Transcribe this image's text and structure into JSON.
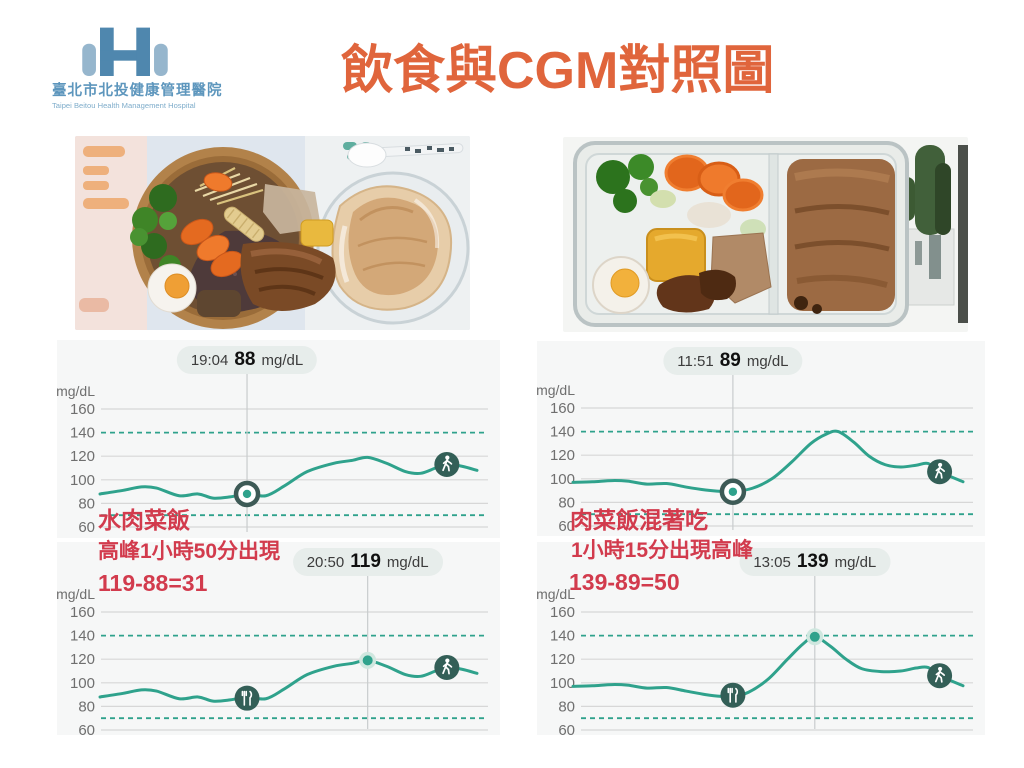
{
  "header": {
    "logo": {
      "line1": "臺北市北投健康管理醫院",
      "line2": "Taipei Beitou Health Management Hospital"
    },
    "title": "飲食與CGM對照圖"
  },
  "annotations": {
    "left": [
      "水肉菜飯",
      "高峰1小時50分出現",
      "119-88=31"
    ],
    "right": [
      "肉菜飯混著吃",
      "1小時15分出現高峰",
      "139-89=50"
    ]
  },
  "colors": {
    "line": "#2fa28c",
    "target": "#2fa28c",
    "grid": "#d7d7d7",
    "icon_bg": "#335f57",
    "ring": "#3d5a56",
    "halo": "#cfe7df",
    "tooltip_bg": "#e7edeb",
    "red": "#d23b4d",
    "title": "#e0653c"
  },
  "chart_data": [
    {
      "type": "line",
      "position": "top-left",
      "ylabel": "mg/dL",
      "yticks": [
        160,
        140,
        120,
        100,
        80,
        60
      ],
      "ylim": [
        55,
        170
      ],
      "target_lines": [
        140,
        70
      ],
      "grid": true,
      "tooltip": {
        "time": "19:04",
        "value": "88",
        "unit": "mg/dL"
      },
      "selected": {
        "t": 0.39,
        "v": 88,
        "style": "ring"
      },
      "icons": [
        {
          "glyph": "walk",
          "t": 0.92,
          "v": 113
        }
      ],
      "points": [
        [
          0,
          88
        ],
        [
          0.06,
          91
        ],
        [
          0.11,
          94
        ],
        [
          0.15,
          93
        ],
        [
          0.21,
          86.5
        ],
        [
          0.26,
          88
        ],
        [
          0.3,
          84.5
        ],
        [
          0.345,
          85.5
        ],
        [
          0.39,
          88
        ],
        [
          0.44,
          86.5
        ],
        [
          0.49,
          95
        ],
        [
          0.55,
          107
        ],
        [
          0.62,
          114
        ],
        [
          0.67,
          116.5
        ],
        [
          0.71,
          119
        ],
        [
          0.76,
          114
        ],
        [
          0.81,
          107
        ],
        [
          0.85,
          105.5
        ],
        [
          0.89,
          110
        ],
        [
          0.92,
          113
        ],
        [
          0.96,
          111.5
        ],
        [
          1,
          108
        ]
      ]
    },
    {
      "type": "line",
      "position": "top-right",
      "ylabel": "mg/dL",
      "yticks": [
        160,
        140,
        120,
        100,
        80,
        60
      ],
      "ylim": [
        55,
        170
      ],
      "target_lines": [
        140,
        70
      ],
      "grid": true,
      "tooltip": {
        "time": "11:51",
        "value": "89",
        "unit": "mg/dL"
      },
      "selected": {
        "t": 0.41,
        "v": 89,
        "style": "ring"
      },
      "icons": [
        {
          "glyph": "walk",
          "t": 0.94,
          "v": 106
        }
      ],
      "points": [
        [
          0,
          97
        ],
        [
          0.05,
          97.5
        ],
        [
          0.1,
          98.5
        ],
        [
          0.14,
          98
        ],
        [
          0.19,
          95.5
        ],
        [
          0.24,
          96
        ],
        [
          0.29,
          93
        ],
        [
          0.34,
          90.5
        ],
        [
          0.38,
          89.3
        ],
        [
          0.41,
          89
        ],
        [
          0.46,
          92
        ],
        [
          0.51,
          100
        ],
        [
          0.56,
          114
        ],
        [
          0.61,
          130
        ],
        [
          0.65,
          138
        ],
        [
          0.68,
          140
        ],
        [
          0.72,
          131
        ],
        [
          0.76,
          119
        ],
        [
          0.8,
          112
        ],
        [
          0.84,
          110
        ],
        [
          0.88,
          111.5
        ],
        [
          0.91,
          113
        ],
        [
          0.94,
          106
        ],
        [
          1,
          97.5
        ]
      ]
    },
    {
      "type": "line",
      "position": "bottom-left",
      "ylabel": "mg/dL",
      "yticks": [
        160,
        140,
        120,
        100,
        80,
        60
      ],
      "ylim": [
        55,
        170
      ],
      "target_lines": [
        140,
        70
      ],
      "grid": true,
      "tooltip": {
        "time": "20:50",
        "value": "119",
        "unit": "mg/dL"
      },
      "selected": {
        "t": 0.71,
        "v": 119,
        "style": "dot"
      },
      "icons": [
        {
          "glyph": "meal",
          "t": 0.39,
          "v": 87
        },
        {
          "glyph": "walk",
          "t": 0.92,
          "v": 113
        }
      ],
      "points": [
        [
          0,
          88
        ],
        [
          0.06,
          91
        ],
        [
          0.11,
          94
        ],
        [
          0.15,
          93
        ],
        [
          0.21,
          86.5
        ],
        [
          0.26,
          88
        ],
        [
          0.3,
          84.5
        ],
        [
          0.345,
          85.5
        ],
        [
          0.39,
          88
        ],
        [
          0.44,
          86.5
        ],
        [
          0.49,
          95
        ],
        [
          0.55,
          107
        ],
        [
          0.62,
          114
        ],
        [
          0.67,
          116.5
        ],
        [
          0.71,
          119
        ],
        [
          0.76,
          114
        ],
        [
          0.81,
          107
        ],
        [
          0.85,
          105.5
        ],
        [
          0.89,
          110
        ],
        [
          0.92,
          113
        ],
        [
          0.96,
          111.5
        ],
        [
          1,
          108
        ]
      ]
    },
    {
      "type": "line",
      "position": "bottom-right",
      "ylabel": "mg/dL",
      "yticks": [
        160,
        140,
        120,
        100,
        80,
        60
      ],
      "ylim": [
        55,
        170
      ],
      "target_lines": [
        140,
        70
      ],
      "grid": true,
      "tooltip": {
        "time": "13:05",
        "value": "139",
        "unit": "mg/dL"
      },
      "selected": {
        "t": 0.62,
        "v": 139,
        "style": "dot"
      },
      "icons": [
        {
          "glyph": "meal",
          "t": 0.41,
          "v": 89.5
        },
        {
          "glyph": "walk",
          "t": 0.94,
          "v": 106
        }
      ],
      "points": [
        [
          0,
          97
        ],
        [
          0.05,
          97.5
        ],
        [
          0.1,
          98.5
        ],
        [
          0.14,
          98
        ],
        [
          0.19,
          95.5
        ],
        [
          0.24,
          96
        ],
        [
          0.29,
          93
        ],
        [
          0.34,
          90
        ],
        [
          0.38,
          88.5
        ],
        [
          0.41,
          88.5
        ],
        [
          0.45,
          92
        ],
        [
          0.5,
          103
        ],
        [
          0.55,
          120
        ],
        [
          0.59,
          133
        ],
        [
          0.62,
          139
        ],
        [
          0.66,
          131
        ],
        [
          0.7,
          120
        ],
        [
          0.74,
          112
        ],
        [
          0.79,
          109.5
        ],
        [
          0.84,
          110
        ],
        [
          0.88,
          112.5
        ],
        [
          0.91,
          113
        ],
        [
          0.94,
          106
        ],
        [
          1,
          97.5
        ]
      ]
    }
  ]
}
